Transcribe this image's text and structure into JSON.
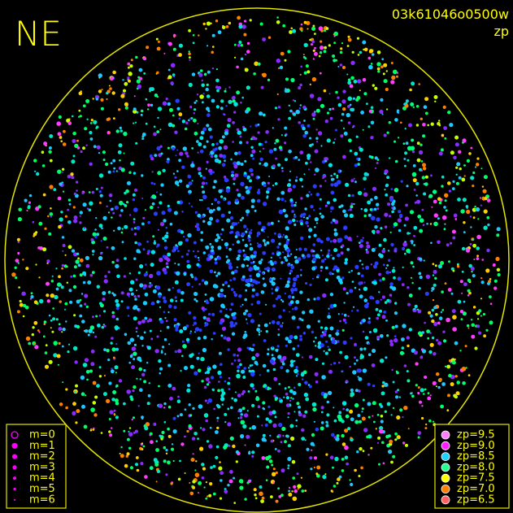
{
  "corner_label": "NE",
  "image_id": "03k61046o0500w",
  "color_key": "zp",
  "magnitude_legend": [
    "m=0",
    "m=1",
    "m=2",
    "m=3",
    "m=4",
    "m=5",
    "m=6"
  ],
  "zp_legend": [
    "zp=9.5",
    "zp=9.0",
    "zp=8.5",
    "zp=8.0",
    "zp=7.5",
    "zp=7.0",
    "zp=6.5"
  ]
}
